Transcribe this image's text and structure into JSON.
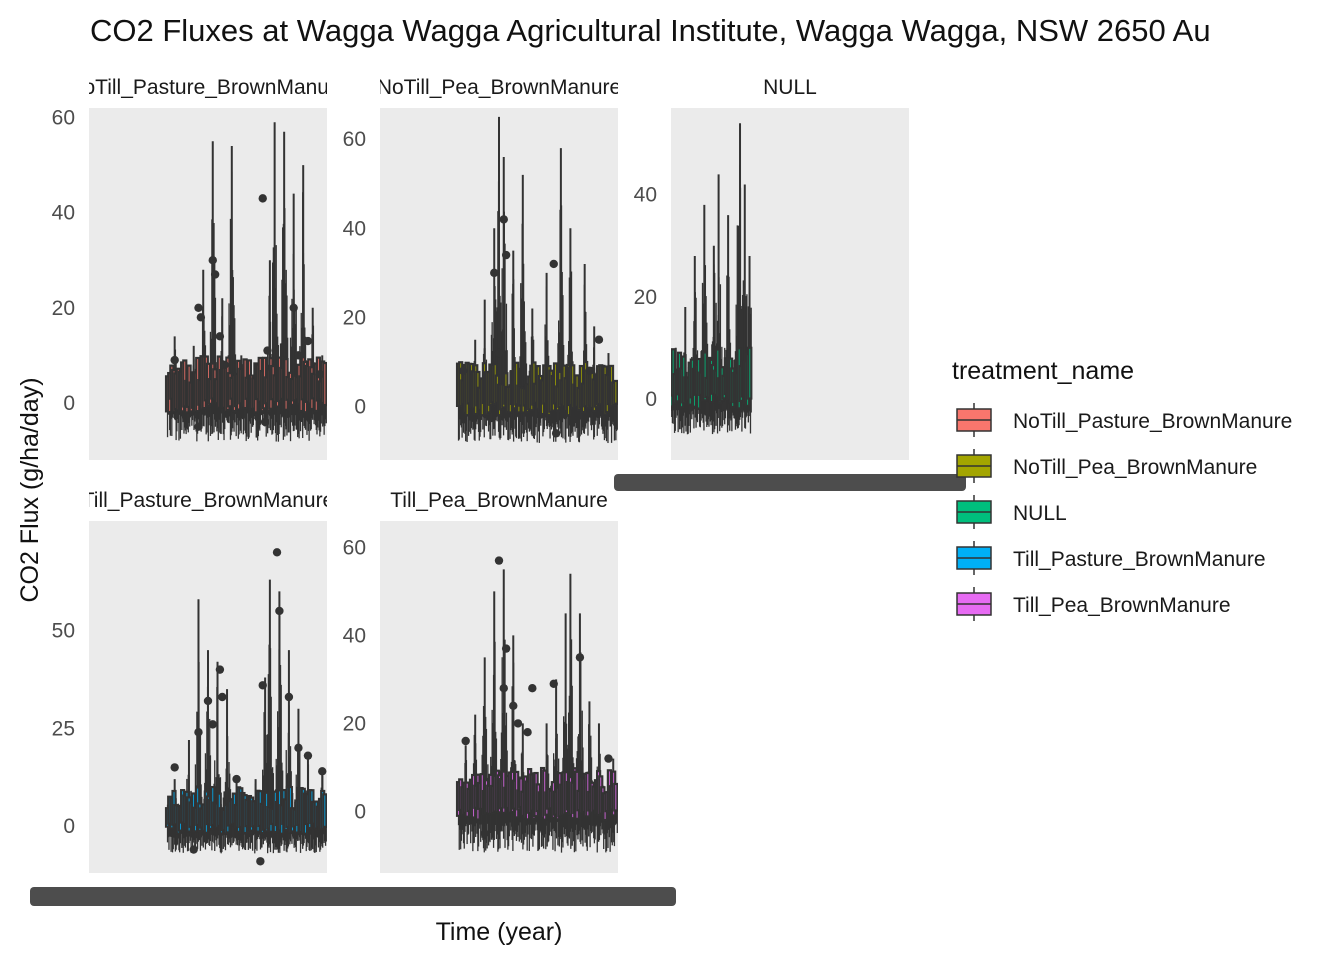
{
  "chart_data": {
    "type": "boxplot",
    "title": "CO2 Fluxes at Wagga Wagga Agricultural Institute, Wagga Wagga, NSW 2650 Au",
    "xlabel": "Time (year)",
    "ylabel": "CO2 Flux (g/ha/day)",
    "legend": {
      "title": "treatment_name",
      "position": "right",
      "entries": [
        {
          "label": "NoTill_Pasture_BrownManure",
          "color": "#F8766D"
        },
        {
          "label": "NoTill_Pea_BrownManure",
          "color": "#A3A500"
        },
        {
          "label": "NULL",
          "color": "#00BF7D"
        },
        {
          "label": "Till_Pasture_BrownManure",
          "color": "#00B0F6"
        },
        {
          "label": "Till_Pea_BrownManure",
          "color": "#E76BF3"
        }
      ]
    },
    "facets": [
      {
        "strip_label": "NoTill_Pasture_BrownManure",
        "strip_visible_text": "Till_Pasture_BrownManu",
        "ylim": [
          -12,
          62
        ],
        "y_ticks": [
          0,
          20,
          40,
          60
        ],
        "box_color": "#F8766D",
        "series": {
          "x_start": 0.33,
          "x_end": 1.0,
          "peaks": [
            {
              "x": 0.36,
              "y": 14
            },
            {
              "x": 0.44,
              "y": 12
            },
            {
              "x": 0.48,
              "y": 28
            },
            {
              "x": 0.52,
              "y": 55
            },
            {
              "x": 0.56,
              "y": 22
            },
            {
              "x": 0.6,
              "y": 54
            },
            {
              "x": 0.64,
              "y": 10
            },
            {
              "x": 0.7,
              "y": 8
            },
            {
              "x": 0.76,
              "y": 30
            },
            {
              "x": 0.78,
              "y": 59
            },
            {
              "x": 0.82,
              "y": 57
            },
            {
              "x": 0.86,
              "y": 44
            },
            {
              "x": 0.9,
              "y": 50
            },
            {
              "x": 0.94,
              "y": 20
            },
            {
              "x": 0.98,
              "y": 10
            }
          ],
          "outliers": [
            {
              "x": 0.36,
              "y": 9
            },
            {
              "x": 0.46,
              "y": 20
            },
            {
              "x": 0.47,
              "y": 18
            },
            {
              "x": 0.52,
              "y": 30
            },
            {
              "x": 0.53,
              "y": 27
            },
            {
              "x": 0.55,
              "y": 14
            },
            {
              "x": 0.57,
              "y": 8
            },
            {
              "x": 0.46,
              "y": -5
            },
            {
              "x": 0.73,
              "y": 43
            },
            {
              "x": 0.75,
              "y": 11
            },
            {
              "x": 0.74,
              "y": -4
            },
            {
              "x": 0.86,
              "y": 20
            },
            {
              "x": 0.88,
              "y": 10
            },
            {
              "x": 0.92,
              "y": 13
            },
            {
              "x": 0.97,
              "y": 6
            }
          ],
          "min_floor": -12
        }
      },
      {
        "strip_label": "NoTill_Pea_BrownManure",
        "strip_visible_text": "loTill_Pea_BrownManur",
        "ylim": [
          -12,
          67
        ],
        "y_ticks": [
          0,
          20,
          40,
          60
        ],
        "box_color": "#A3A500",
        "series": {
          "x_start": 0.33,
          "x_end": 1.0,
          "peaks": [
            {
              "x": 0.36,
              "y": 10
            },
            {
              "x": 0.4,
              "y": 15
            },
            {
              "x": 0.44,
              "y": 24
            },
            {
              "x": 0.48,
              "y": 40
            },
            {
              "x": 0.5,
              "y": 65
            },
            {
              "x": 0.52,
              "y": 56
            },
            {
              "x": 0.56,
              "y": 35
            },
            {
              "x": 0.6,
              "y": 52
            },
            {
              "x": 0.64,
              "y": 22
            },
            {
              "x": 0.7,
              "y": 30
            },
            {
              "x": 0.76,
              "y": 58
            },
            {
              "x": 0.8,
              "y": 40
            },
            {
              "x": 0.86,
              "y": 32
            },
            {
              "x": 0.9,
              "y": 18
            },
            {
              "x": 0.96,
              "y": 12
            }
          ],
          "outliers": [
            {
              "x": 0.35,
              "y": 8
            },
            {
              "x": 0.48,
              "y": 30
            },
            {
              "x": 0.52,
              "y": 42
            },
            {
              "x": 0.53,
              "y": 34
            },
            {
              "x": 0.5,
              "y": 12
            },
            {
              "x": 0.73,
              "y": 32
            },
            {
              "x": 0.74,
              "y": -6
            },
            {
              "x": 0.92,
              "y": 15
            },
            {
              "x": 0.88,
              "y": 8
            }
          ],
          "min_floor": -12
        }
      },
      {
        "strip_label": "NULL",
        "strip_visible_text": "NULL",
        "ylim": [
          -12,
          57
        ],
        "y_ticks": [
          0,
          20,
          40
        ],
        "box_color": "#00BF7D",
        "series": {
          "x_start": 0.0,
          "x_end": 0.34,
          "peaks": [
            {
              "x": 0.02,
              "y": 10
            },
            {
              "x": 0.06,
              "y": 18
            },
            {
              "x": 0.1,
              "y": 28
            },
            {
              "x": 0.14,
              "y": 38
            },
            {
              "x": 0.18,
              "y": 30
            },
            {
              "x": 0.2,
              "y": 44
            },
            {
              "x": 0.24,
              "y": 36
            },
            {
              "x": 0.28,
              "y": 34
            },
            {
              "x": 0.29,
              "y": 54
            },
            {
              "x": 0.31,
              "y": 42
            },
            {
              "x": 0.33,
              "y": 28
            }
          ],
          "outliers": [],
          "min_floor": -10
        }
      },
      {
        "strip_label": "Till_Pasture_BrownManure",
        "strip_visible_text": "ll_Pasture_BrownManur",
        "ylim": [
          -12,
          78
        ],
        "y_ticks": [
          0,
          25,
          50
        ],
        "box_color": "#00B0F6",
        "series": {
          "x_start": 0.33,
          "x_end": 1.0,
          "peaks": [
            {
              "x": 0.36,
              "y": 12
            },
            {
              "x": 0.42,
              "y": 22
            },
            {
              "x": 0.46,
              "y": 58
            },
            {
              "x": 0.5,
              "y": 45
            },
            {
              "x": 0.54,
              "y": 42
            },
            {
              "x": 0.58,
              "y": 35
            },
            {
              "x": 0.62,
              "y": 12
            },
            {
              "x": 0.7,
              "y": 12
            },
            {
              "x": 0.74,
              "y": 38
            },
            {
              "x": 0.76,
              "y": 63
            },
            {
              "x": 0.8,
              "y": 60
            },
            {
              "x": 0.84,
              "y": 45
            },
            {
              "x": 0.88,
              "y": 30
            },
            {
              "x": 0.92,
              "y": 18
            },
            {
              "x": 0.98,
              "y": 15
            }
          ],
          "outliers": [
            {
              "x": 0.36,
              "y": 15
            },
            {
              "x": 0.46,
              "y": 24
            },
            {
              "x": 0.5,
              "y": 32
            },
            {
              "x": 0.52,
              "y": 26
            },
            {
              "x": 0.55,
              "y": 40
            },
            {
              "x": 0.56,
              "y": 33
            },
            {
              "x": 0.62,
              "y": 12
            },
            {
              "x": 0.73,
              "y": 36
            },
            {
              "x": 0.72,
              "y": -9
            },
            {
              "x": 0.79,
              "y": 70
            },
            {
              "x": 0.8,
              "y": 55
            },
            {
              "x": 0.84,
              "y": 33
            },
            {
              "x": 0.88,
              "y": 20
            },
            {
              "x": 0.92,
              "y": 18
            },
            {
              "x": 0.98,
              "y": 14
            },
            {
              "x": 0.44,
              "y": -6
            }
          ],
          "min_floor": -10
        }
      },
      {
        "strip_label": "Till_Pea_BrownManure",
        "strip_visible_text": "Till_Pea_BrownManure",
        "ylim": [
          -14,
          66
        ],
        "y_ticks": [
          0,
          20,
          40,
          60
        ],
        "box_color": "#E76BF3",
        "series": {
          "x_start": 0.33,
          "x_end": 1.0,
          "peaks": [
            {
              "x": 0.36,
              "y": 15
            },
            {
              "x": 0.4,
              "y": 22
            },
            {
              "x": 0.44,
              "y": 35
            },
            {
              "x": 0.48,
              "y": 50
            },
            {
              "x": 0.52,
              "y": 55
            },
            {
              "x": 0.56,
              "y": 40
            },
            {
              "x": 0.6,
              "y": 20
            },
            {
              "x": 0.7,
              "y": 20
            },
            {
              "x": 0.74,
              "y": 30
            },
            {
              "x": 0.78,
              "y": 45
            },
            {
              "x": 0.8,
              "y": 54
            },
            {
              "x": 0.84,
              "y": 45
            },
            {
              "x": 0.88,
              "y": 25
            },
            {
              "x": 0.92,
              "y": 20
            },
            {
              "x": 0.98,
              "y": 12
            }
          ],
          "outliers": [
            {
              "x": 0.36,
              "y": 16
            },
            {
              "x": 0.5,
              "y": 57
            },
            {
              "x": 0.53,
              "y": 37
            },
            {
              "x": 0.52,
              "y": 28
            },
            {
              "x": 0.56,
              "y": 24
            },
            {
              "x": 0.58,
              "y": 20
            },
            {
              "x": 0.64,
              "y": 28
            },
            {
              "x": 0.62,
              "y": 18
            },
            {
              "x": 0.73,
              "y": 29
            },
            {
              "x": 0.84,
              "y": 35
            },
            {
              "x": 0.96,
              "y": 12
            },
            {
              "x": 0.44,
              "y": -5
            }
          ],
          "min_floor": -14
        }
      }
    ]
  }
}
